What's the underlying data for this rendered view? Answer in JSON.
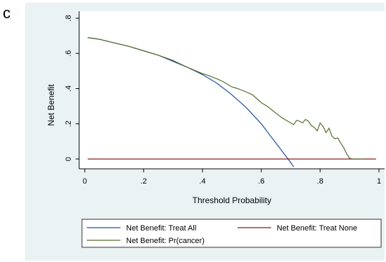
{
  "panel_label": "c",
  "chart_data": {
    "type": "line",
    "title": "",
    "xlabel": "Threshold Probability",
    "ylabel": "Net Benefit",
    "xlim": [
      0,
      1
    ],
    "ylim": [
      -0.05,
      0.8
    ],
    "x_ticks": [
      0,
      0.2,
      0.4,
      0.6,
      0.8,
      1
    ],
    "x_tick_labels": [
      "0",
      ".2",
      ".4",
      ".6",
      ".8",
      "1"
    ],
    "y_ticks": [
      0,
      0.2,
      0.4,
      0.6,
      0.8
    ],
    "y_tick_labels": [
      "0",
      ".2",
      ".4",
      ".6",
      ".8"
    ],
    "grid": false,
    "legend_position": "bottom",
    "series": [
      {
        "name": "Net Benefit: Treat All",
        "color": "#1f4e9c",
        "x": [
          0.01,
          0.05,
          0.1,
          0.15,
          0.2,
          0.25,
          0.3,
          0.35,
          0.4,
          0.45,
          0.5,
          0.55,
          0.6,
          0.65,
          0.7,
          0.71
        ],
        "y": [
          0.69,
          0.68,
          0.66,
          0.64,
          0.615,
          0.59,
          0.555,
          0.52,
          0.48,
          0.43,
          0.365,
          0.29,
          0.2,
          0.09,
          -0.02,
          -0.045
        ]
      },
      {
        "name": "Net Benefit: Treat None",
        "color": "#8b1a1a",
        "x": [
          0.01,
          0.99
        ],
        "y": [
          0,
          0
        ]
      },
      {
        "name": "Net Benefit: Pr(cancer)",
        "color": "#556b2f",
        "x": [
          0.01,
          0.05,
          0.1,
          0.15,
          0.2,
          0.25,
          0.3,
          0.35,
          0.4,
          0.42,
          0.45,
          0.47,
          0.5,
          0.52,
          0.55,
          0.57,
          0.6,
          0.62,
          0.65,
          0.67,
          0.7,
          0.71,
          0.72,
          0.73,
          0.74,
          0.75,
          0.76,
          0.77,
          0.78,
          0.79,
          0.8,
          0.81,
          0.82,
          0.83,
          0.84,
          0.85,
          0.86,
          0.87,
          0.88,
          0.89,
          0.9,
          0.91,
          0.93,
          0.95
        ],
        "y": [
          0.69,
          0.68,
          0.66,
          0.64,
          0.615,
          0.59,
          0.56,
          0.52,
          0.485,
          0.475,
          0.455,
          0.44,
          0.41,
          0.4,
          0.38,
          0.365,
          0.32,
          0.3,
          0.26,
          0.235,
          0.205,
          0.195,
          0.22,
          0.215,
          0.205,
          0.225,
          0.215,
          0.19,
          0.18,
          0.16,
          0.205,
          0.185,
          0.15,
          0.175,
          0.13,
          0.115,
          0.12,
          0.09,
          0.065,
          0.03,
          0.005,
          0.0,
          0.0,
          0.0
        ]
      }
    ]
  }
}
